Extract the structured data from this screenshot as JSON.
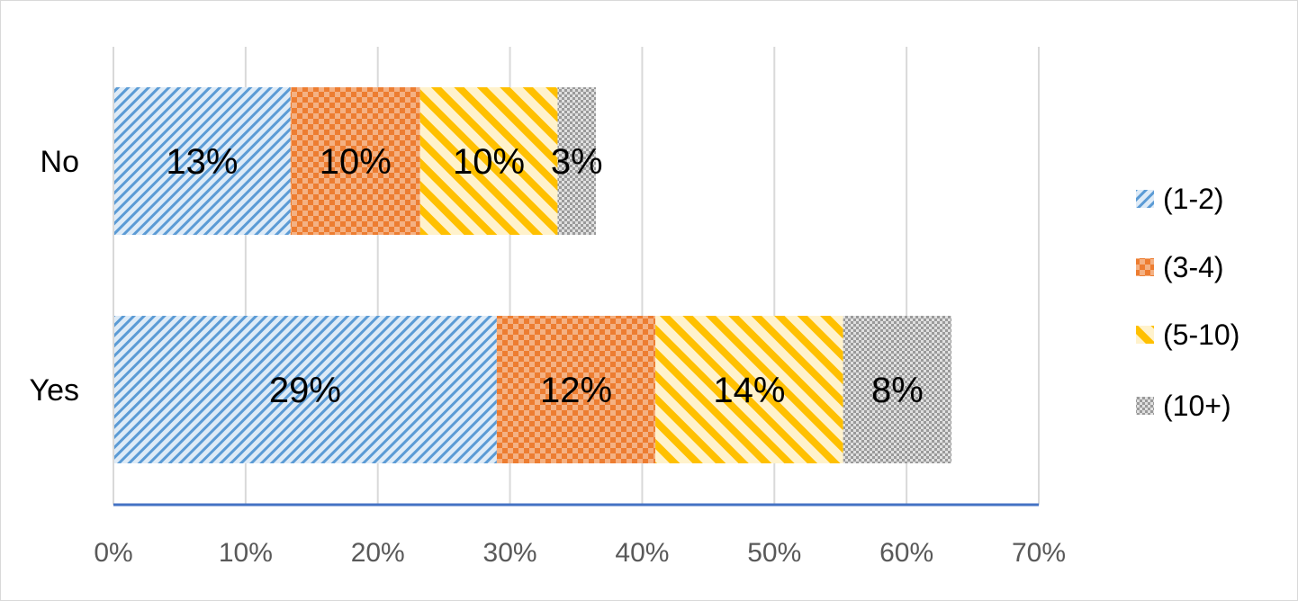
{
  "chart_data": {
    "type": "bar",
    "orientation": "horizontal",
    "stacked": true,
    "categories": [
      "No",
      "Yes"
    ],
    "series": [
      {
        "name": "(1-2)",
        "values": [
          13.4,
          29.0
        ],
        "labels": [
          "13%",
          "29%"
        ],
        "color": "#5b9bd5",
        "pattern": "diagonal-stripes-fine"
      },
      {
        "name": "(3-4)",
        "values": [
          9.8,
          12.0
        ],
        "labels": [
          "10%",
          "12%"
        ],
        "color": "#ed7d31",
        "pattern": "checker"
      },
      {
        "name": "(5-10)",
        "values": [
          10.4,
          14.2
        ],
        "labels": [
          "10%",
          "14%"
        ],
        "color": "#ffc000",
        "pattern": "wide-diagonal-stripes"
      },
      {
        "name": "(10+)",
        "values": [
          2.9,
          8.2
        ],
        "labels": [
          "3%",
          "8%"
        ],
        "color": "#a5a5a5",
        "pattern": "fine-checker"
      }
    ],
    "xlim": [
      0,
      70
    ],
    "xticks": [
      "0%",
      "10%",
      "20%",
      "30%",
      "40%",
      "50%",
      "60%",
      "70%"
    ],
    "grid": "vertical",
    "legend": "right",
    "axis_line_color": "#4472c4",
    "grid_color": "#d9d9d9"
  }
}
